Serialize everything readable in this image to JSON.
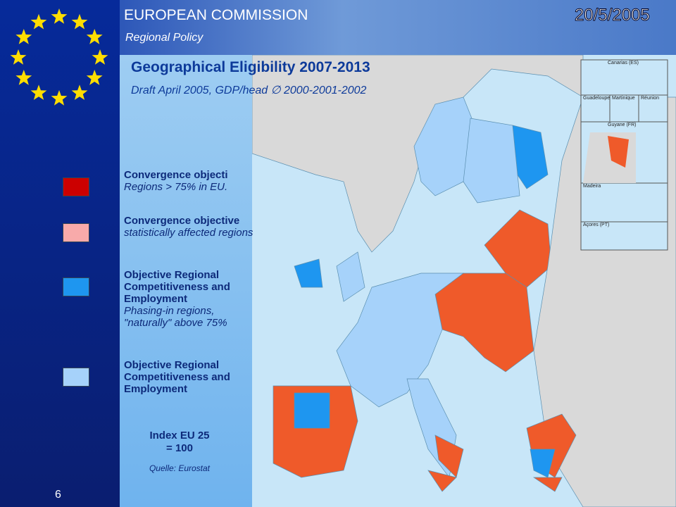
{
  "header": {
    "organisation": "EUROPEAN COMMISSION",
    "unit": "Regional Policy",
    "date": "20/5/2005"
  },
  "title": "Geographical  Eligibility 2007-2013",
  "subtitle": "Draft April 2005, GDP/head ∅ 2000-2001-2002",
  "legend": [
    {
      "title": "Convergence objecti",
      "subtitle": "Regions > 75% in EU.",
      "color": "#cc0000"
    },
    {
      "title": "Convergence objective",
      "subtitle": "statistically affected regions",
      "color": "#f8aaaa"
    },
    {
      "title": "Objective Regional Competitiveness and Employment",
      "subtitle": "Phasing-in regions, \"naturally\" above 75%",
      "color": "#1e96f0"
    },
    {
      "title": "Objective Regional Competitiveness and Employment",
      "subtitle": null,
      "color": "#a6d2fa"
    }
  ],
  "index_note": [
    "Index EU 25",
    "= 100"
  ],
  "source": "Quelle: Eurostat",
  "page_number": "6",
  "insets": [
    "Canarias (ES)",
    "Guadeloupe",
    "Martinique",
    "Réunion",
    "Guyane (FR)",
    "Açores (PT)",
    "Madeira"
  ]
}
